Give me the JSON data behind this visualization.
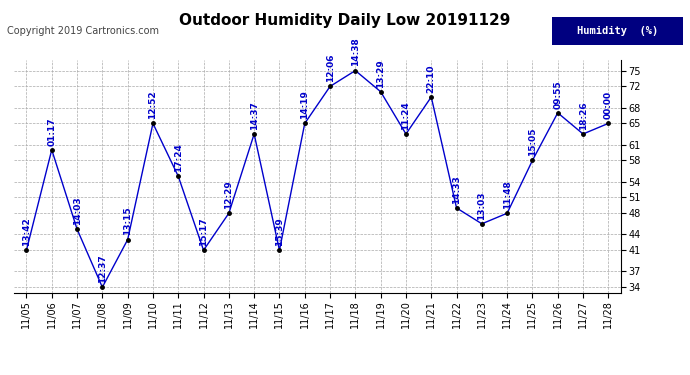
{
  "title": "Outdoor Humidity Daily Low 20191129",
  "copyright": "Copyright 2019 Cartronics.com",
  "legend_label": "Humidity  (%)",
  "dates": [
    "11/05",
    "11/06",
    "11/07",
    "11/08",
    "11/09",
    "11/10",
    "11/11",
    "11/12",
    "11/13",
    "11/14",
    "11/15",
    "11/16",
    "11/17",
    "11/18",
    "11/19",
    "11/20",
    "11/21",
    "11/22",
    "11/23",
    "11/24",
    "11/25",
    "11/26",
    "11/27",
    "11/28"
  ],
  "values": [
    41,
    60,
    45,
    34,
    43,
    65,
    55,
    41,
    48,
    63,
    41,
    65,
    72,
    75,
    71,
    63,
    70,
    49,
    46,
    48,
    58,
    67,
    63,
    65
  ],
  "labels": [
    "13:42",
    "01:17",
    "14:03",
    "12:37",
    "13:15",
    "12:52",
    "17:24",
    "15:17",
    "12:29",
    "14:37",
    "15:39",
    "14:19",
    "12:06",
    "14:38",
    "13:29",
    "11:24",
    "22:10",
    "14:33",
    "13:03",
    "11:48",
    "15:05",
    "09:55",
    "18:26",
    "00:00"
  ],
  "line_color": "#0000cc",
  "marker_color": "#000000",
  "bg_color": "#ffffff",
  "grid_color": "#aaaaaa",
  "ylim": [
    33,
    77
  ],
  "yticks": [
    34,
    37,
    41,
    44,
    48,
    51,
    54,
    58,
    61,
    65,
    68,
    72,
    75
  ],
  "title_fontsize": 11,
  "label_fontsize": 6.5,
  "tick_fontsize": 7,
  "copyright_fontsize": 7
}
